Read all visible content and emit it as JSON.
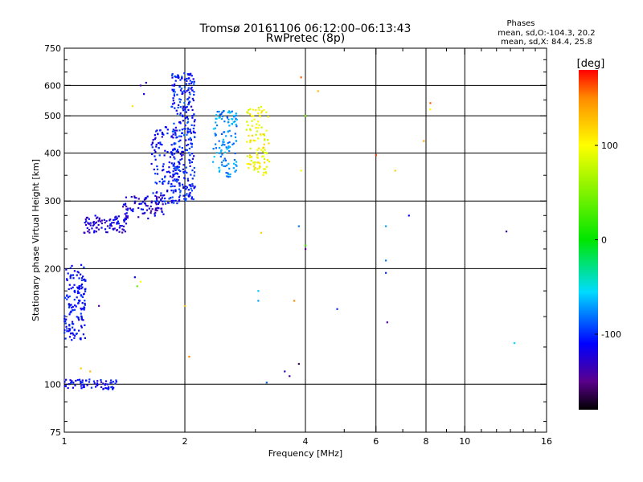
{
  "chart_data": {
    "type": "scatter",
    "title": "Tromsø 20161106 06:12:00–06:13:43",
    "subtitle": "RwPretec (8p)",
    "xlabel": "Frequency [MHz]",
    "ylabel": "Stationary phase Virtual Height [km]",
    "x_scale": "log",
    "y_scale": "log",
    "xlim": [
      1,
      16
    ],
    "ylim": [
      75,
      750
    ],
    "x_ticks": [
      1,
      2,
      4,
      6,
      8,
      10,
      16
    ],
    "y_ticks": [
      75,
      100,
      200,
      300,
      400,
      500,
      600,
      750
    ],
    "x_gridlines": [
      2,
      4,
      6,
      8,
      10
    ],
    "y_gridlines": [
      100,
      200,
      300,
      400,
      500,
      600
    ],
    "grid": true,
    "stats": {
      "heading": "Phases",
      "line_o": "mean, sd,O:-104.3, 20.2",
      "line_x": "mean, sd,X:  84.4, 25.8"
    },
    "colorbar": {
      "label": "[deg]",
      "range": [
        -180,
        180
      ],
      "ticks": [
        100,
        0,
        -100
      ],
      "colormap": "rainbow"
    },
    "series": [
      {
        "clusters": [
          {
            "x": [
              1.0,
              1.13
            ],
            "y": [
              130,
              205
            ],
            "n": 150,
            "phase": [
              -120,
              -95
            ]
          },
          {
            "x": [
              1.0,
              1.35
            ],
            "y": [
              97,
              103
            ],
            "n": 70,
            "phase": [
              -130,
              -95
            ]
          },
          {
            "x": [
              1.12,
              1.45
            ],
            "y": [
              248,
              275
            ],
            "n": 90,
            "phase": [
              -140,
              -105
            ]
          },
          {
            "x": [
              1.4,
              1.78
            ],
            "y": [
              270,
              310
            ],
            "n": 80,
            "phase": [
              -145,
              -100
            ]
          },
          {
            "x": [
              1.65,
              1.95
            ],
            "y": [
              295,
              470
            ],
            "n": 140,
            "phase": [
              -125,
              -90
            ]
          },
          {
            "x": [
              1.85,
              2.12
            ],
            "y": [
              300,
              650
            ],
            "n": 300,
            "phase": [
              -125,
              -85
            ]
          },
          {
            "x": [
              2.35,
              2.7
            ],
            "y": [
              345,
              520
            ],
            "n": 120,
            "phase": [
              -90,
              -55
            ]
          },
          {
            "x": [
              2.85,
              3.25
            ],
            "y": [
              350,
              530
            ],
            "n": 110,
            "phase": [
              75,
              120
            ]
          }
        ],
        "points": [
          {
            "x": 1.55,
            "y": 600,
            "phase": -140
          },
          {
            "x": 1.6,
            "y": 610,
            "phase": -130
          },
          {
            "x": 1.58,
            "y": 570,
            "phase": -120
          },
          {
            "x": 1.48,
            "y": 530,
            "phase": 110
          },
          {
            "x": 1.5,
            "y": 190,
            "phase": -110
          },
          {
            "x": 1.52,
            "y": 180,
            "phase": 40
          },
          {
            "x": 1.55,
            "y": 185,
            "phase": 100
          },
          {
            "x": 1.22,
            "y": 160,
            "phase": -150
          },
          {
            "x": 1.1,
            "y": 110,
            "phase": 120
          },
          {
            "x": 1.16,
            "y": 108,
            "phase": 130
          },
          {
            "x": 3.05,
            "y": 175,
            "phase": -60
          },
          {
            "x": 3.05,
            "y": 165,
            "phase": -70
          },
          {
            "x": 3.1,
            "y": 248,
            "phase": 120
          },
          {
            "x": 3.2,
            "y": 101,
            "phase": -90
          },
          {
            "x": 3.55,
            "y": 108,
            "phase": -130
          },
          {
            "x": 3.65,
            "y": 105,
            "phase": -140
          },
          {
            "x": 3.85,
            "y": 113,
            "phase": -160
          },
          {
            "x": 3.75,
            "y": 165,
            "phase": 150
          },
          {
            "x": 3.85,
            "y": 258,
            "phase": -80
          },
          {
            "x": 4.0,
            "y": 230,
            "phase": 20
          },
          {
            "x": 4.0,
            "y": 225,
            "phase": -150
          },
          {
            "x": 3.9,
            "y": 360,
            "phase": 100
          },
          {
            "x": 3.9,
            "y": 630,
            "phase": 160
          },
          {
            "x": 4.0,
            "y": 500,
            "phase": 40
          },
          {
            "x": 4.3,
            "y": 580,
            "phase": 130
          },
          {
            "x": 4.8,
            "y": 157,
            "phase": -100
          },
          {
            "x": 6.0,
            "y": 395,
            "phase": 170
          },
          {
            "x": 6.35,
            "y": 258,
            "phase": -70
          },
          {
            "x": 6.35,
            "y": 210,
            "phase": -80
          },
          {
            "x": 6.35,
            "y": 195,
            "phase": -100
          },
          {
            "x": 6.4,
            "y": 145,
            "phase": -140
          },
          {
            "x": 6.7,
            "y": 360,
            "phase": 120
          },
          {
            "x": 7.25,
            "y": 275,
            "phase": -110
          },
          {
            "x": 7.9,
            "y": 430,
            "phase": 140
          },
          {
            "x": 8.2,
            "y": 540,
            "phase": 160
          },
          {
            "x": 8.2,
            "y": 520,
            "phase": 100
          },
          {
            "x": 12.7,
            "y": 250,
            "phase": -135
          },
          {
            "x": 13.3,
            "y": 128,
            "phase": -55
          },
          {
            "x": 2.0,
            "y": 160,
            "phase": 130
          },
          {
            "x": 2.05,
            "y": 118,
            "phase": 150
          }
        ]
      }
    ]
  }
}
